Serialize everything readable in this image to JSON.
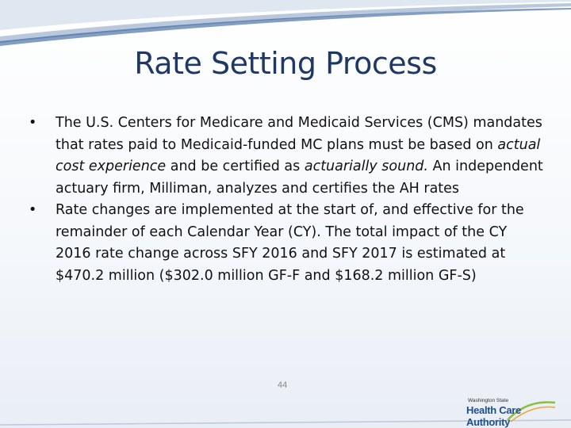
{
  "slide": {
    "title": "Rate Setting Process",
    "bullets": [
      {
        "parts": [
          {
            "text": "The U.S. Centers for Medicare and Medicaid Services (CMS) mandates that rates paid to Medicaid-funded MC plans must be based on ",
            "italic": false
          },
          {
            "text": "actual cost experience",
            "italic": true
          },
          {
            "text": " and be certified as ",
            "italic": false
          },
          {
            "text": "actuarially sound.",
            "italic": true
          },
          {
            "text": " An independent actuary firm, Milliman, analyzes and certifies the AH rates",
            "italic": false
          }
        ]
      },
      {
        "parts": [
          {
            "text": "Rate changes are implemented at the start of, and effective for the remainder of each Calendar Year (CY). The total impact of the CY 2016 rate change across SFY 2016 and SFY 2017 is estimated at $470.2 million ($302.0 million GF-F and $168.2 million GF-S)",
            "italic": false
          }
        ]
      }
    ],
    "bullet_symbol": "•",
    "page_number": "44"
  },
  "logo": {
    "small_text": "Washington State",
    "big_text": "Health Care Authority"
  },
  "colors": {
    "title": "#1f3864",
    "band": "#1f4e8c",
    "band_light": "#c9d6e8"
  }
}
